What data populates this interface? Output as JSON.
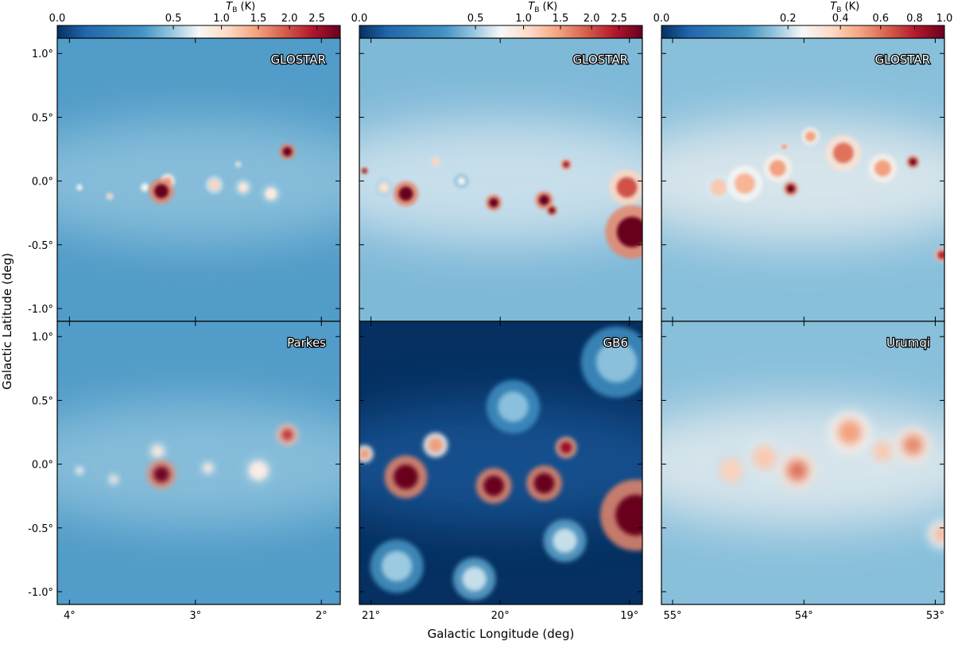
{
  "chart_data": {
    "type": "heatmap",
    "xlabel": "Galactic Longitude (deg)",
    "ylabel": "Galactic Latitude (deg)",
    "colorbar_label": "T_B (K)",
    "colorbar_label_main": "T",
    "colorbar_label_sub": "B",
    "colorbar_label_unit": " (K)",
    "colormap": "RdBu_r",
    "stretch": "sqrt",
    "lat_range": [
      -1.1,
      1.12
    ],
    "lat_ticks": [
      1.0,
      0.5,
      0.0,
      -0.5,
      -1.0
    ],
    "lat_tick_labels": [
      "1.0°",
      "0.5°",
      "0.0°",
      "-0.5°",
      "-1.0°"
    ],
    "columns": [
      {
        "lon_range": [
          4.097,
          1.85
        ],
        "lon_ticks": [
          4,
          3,
          2
        ],
        "lon_tick_labels": [
          "4°",
          "3°",
          "2°"
        ],
        "colorbar": {
          "range": [
            0,
            2.97
          ],
          "ticks": [
            0,
            0.5,
            1.0,
            1.5,
            2.0,
            2.5
          ],
          "tick_labels": [
            "0.0",
            "0.5",
            "1.0",
            "1.5",
            "2.0",
            "2.5"
          ]
        },
        "panels": [
          {
            "survey": "GLOSTAR",
            "background": 0.3,
            "smooth": 0.01,
            "sources": [
              [
                3.27,
                -0.08,
                3,
                0.07
              ],
              [
                3.22,
                0.0,
                1.4,
                0.04
              ],
              [
                2.27,
                0.23,
                3,
                0.045
              ],
              [
                2.85,
                -0.03,
                1.1,
                0.05
              ],
              [
                2.62,
                -0.05,
                0.95,
                0.05
              ],
              [
                3.68,
                -0.12,
                1.4,
                0.018
              ],
              [
                2.66,
                0.13,
                1.1,
                0.018
              ],
              [
                3.92,
                -0.05,
                0.75,
                0.03
              ],
              [
                2.4,
                -0.1,
                0.9,
                0.06
              ],
              [
                3.4,
                -0.05,
                0.8,
                0.04
              ]
            ]
          },
          {
            "survey": "Parkes",
            "background": 0.3,
            "smooth": 0.04,
            "sources": [
              [
                3.27,
                -0.08,
                2.9,
                0.08
              ],
              [
                3.3,
                0.1,
                0.9,
                0.06
              ],
              [
                2.27,
                0.23,
                2.2,
                0.06
              ],
              [
                2.9,
                -0.03,
                0.9,
                0.05
              ],
              [
                2.5,
                -0.05,
                0.85,
                0.1
              ],
              [
                3.65,
                -0.12,
                0.9,
                0.04
              ],
              [
                3.92,
                -0.05,
                0.75,
                0.04
              ]
            ]
          }
        ]
      },
      {
        "lon_range": [
          21.09,
          18.9
        ],
        "lon_ticks": [
          21,
          20,
          19
        ],
        "lon_tick_labels": [
          "21°",
          "20°",
          "19°"
        ],
        "colorbar": {
          "range": [
            0,
            2.97
          ],
          "ticks": [
            0,
            0.5,
            1.0,
            1.5,
            2.0,
            2.5
          ],
          "tick_labels": [
            "0.0",
            "0.5",
            "1.0",
            "1.5",
            "2.0",
            "2.5"
          ]
        },
        "panels": [
          {
            "survey": "GLOSTAR",
            "background": 0.42,
            "smooth": 0.01,
            "sources": [
              [
                20.73,
                -0.1,
                3,
                0.07
              ],
              [
                21.05,
                0.08,
                3,
                0.02
              ],
              [
                20.5,
                0.15,
                1.1,
                0.04
              ],
              [
                20.05,
                -0.17,
                3,
                0.045
              ],
              [
                19.66,
                -0.15,
                3,
                0.05
              ],
              [
                19.6,
                -0.23,
                3,
                0.03
              ],
              [
                19.49,
                0.13,
                2.6,
                0.03
              ],
              [
                18.98,
                -0.4,
                3,
                0.15
              ],
              [
                19.02,
                -0.05,
                2,
                0.1
              ],
              [
                20.3,
                0.0,
                0.8,
                0.04
              ],
              [
                20.9,
                -0.05,
                1.0,
                0.05
              ]
            ]
          },
          {
            "survey": "GB6",
            "background": 0.0,
            "smooth": 0.03,
            "sources": [
              [
                20.73,
                -0.1,
                3,
                0.12
              ],
              [
                21.05,
                0.08,
                1.5,
                0.05
              ],
              [
                20.5,
                0.15,
                1.5,
                0.07
              ],
              [
                20.05,
                -0.17,
                3,
                0.1
              ],
              [
                19.66,
                -0.15,
                3,
                0.1
              ],
              [
                19.49,
                0.13,
                2.6,
                0.06
              ],
              [
                18.95,
                -0.4,
                3,
                0.2
              ],
              [
                20.2,
                -0.9,
                0.6,
                0.12
              ],
              [
                19.5,
                -0.6,
                0.6,
                0.12
              ],
              [
                20.8,
                -0.8,
                0.5,
                0.15
              ],
              [
                19.9,
                0.45,
                0.45,
                0.15
              ],
              [
                19.1,
                0.8,
                0.45,
                0.2
              ]
            ]
          }
        ]
      },
      {
        "lon_range": [
          55.085,
          52.93
        ],
        "lon_ticks": [
          55,
          54,
          53
        ],
        "lon_tick_labels": [
          "55°",
          "54°",
          "53°"
        ],
        "colorbar": {
          "range": [
            0,
            1.0
          ],
          "ticks": [
            0,
            0.2,
            0.4,
            0.6,
            0.8,
            1.0
          ],
          "tick_labels": [
            "0.0",
            "0.2",
            "0.4",
            "0.6",
            "0.8",
            "1.0"
          ]
        },
        "panels": [
          {
            "survey": "GLOSTAR",
            "background": 0.15,
            "smooth": 0.01,
            "sources": [
              [
                54.1,
                -0.06,
                1,
                0.04
              ],
              [
                53.17,
                0.15,
                1,
                0.035
              ],
              [
                53.7,
                0.22,
                0.6,
                0.1
              ],
              [
                54.2,
                0.1,
                0.5,
                0.08
              ],
              [
                54.45,
                -0.02,
                0.45,
                0.1
              ],
              [
                53.95,
                0.35,
                0.5,
                0.05
              ],
              [
                53.4,
                0.1,
                0.5,
                0.08
              ],
              [
                52.95,
                -0.58,
                0.8,
                0.04
              ],
              [
                54.15,
                0.27,
                0.6,
                0.02
              ],
              [
                54.65,
                -0.05,
                0.4,
                0.08
              ]
            ]
          },
          {
            "survey": "Urumqi",
            "background": 0.15,
            "smooth": 0.06,
            "sources": [
              [
                54.05,
                -0.05,
                0.6,
                0.1
              ],
              [
                53.17,
                0.15,
                0.55,
                0.1
              ],
              [
                53.65,
                0.25,
                0.5,
                0.12
              ],
              [
                54.3,
                0.05,
                0.4,
                0.12
              ],
              [
                54.55,
                -0.05,
                0.38,
                0.12
              ],
              [
                53.4,
                0.1,
                0.4,
                0.1
              ],
              [
                52.95,
                -0.55,
                0.45,
                0.08
              ]
            ]
          }
        ]
      }
    ]
  }
}
